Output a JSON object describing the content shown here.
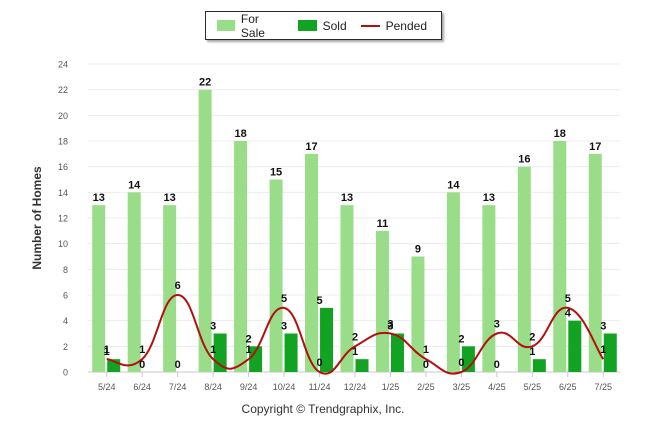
{
  "legend": {
    "for_sale": "For Sale",
    "sold": "Sold",
    "pended": "Pended"
  },
  "copyright": "Copyright © Trendgraphix, Inc.",
  "colors": {
    "for_sale": "#99dd88",
    "sold": "#12a323",
    "pended": "#b40f0f"
  },
  "chart_data": {
    "type": "bar",
    "title": "",
    "xlabel": "",
    "ylabel": "Number of Homes",
    "ylim": [
      0,
      24
    ],
    "yticks": [
      0,
      2,
      4,
      6,
      8,
      10,
      12,
      14,
      16,
      18,
      20,
      22,
      24
    ],
    "grid": true,
    "legend_position": "top-center",
    "categories": [
      "5/24",
      "6/24",
      "7/24",
      "8/24",
      "9/24",
      "10/24",
      "11/24",
      "12/24",
      "1/25",
      "2/25",
      "3/25",
      "4/25",
      "5/25",
      "6/25",
      "7/25"
    ],
    "series": [
      {
        "name": "For Sale",
        "kind": "bar",
        "values": [
          13,
          14,
          13,
          22,
          18,
          15,
          17,
          13,
          11,
          9,
          14,
          13,
          16,
          18,
          17
        ]
      },
      {
        "name": "Sold",
        "kind": "bar",
        "values": [
          1,
          0,
          0,
          3,
          2,
          3,
          5,
          1,
          3,
          0,
          2,
          0,
          1,
          4,
          3
        ]
      },
      {
        "name": "Pended",
        "kind": "line",
        "values": [
          1,
          1,
          6,
          1,
          1,
          5,
          0,
          2,
          3,
          1,
          0,
          3,
          2,
          5,
          1
        ]
      }
    ]
  }
}
